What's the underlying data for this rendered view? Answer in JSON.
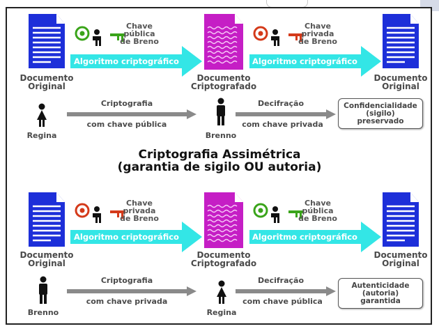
{
  "title_line1": "Criptografia Assimétrica",
  "title_line2": "(garantia de sigilo OU autoria)",
  "colors": {
    "doc_blue": "#1d2fd9",
    "cipher_magenta": "#c51ec5",
    "cyan_arrow": "#33e6e6",
    "algo_text": "#ffffff",
    "public_key_green": "#3aa41a",
    "private_key_red": "#d43a1a",
    "gray_arrow": "#8a8a8a"
  },
  "top": {
    "algo_label": "Algoritmo criptográfico",
    "key1": {
      "type": "public",
      "icon": "public-key-icon",
      "line1": "Chave",
      "line2": "pública",
      "line3": "de Breno"
    },
    "key2": {
      "type": "private",
      "icon": "private-key-icon",
      "line1": "Chave",
      "line2": "privada",
      "line3": "de Breno"
    },
    "doc_original_l1": "Documento",
    "doc_original_l2": "Original",
    "doc_cipher_l1": "Documento",
    "doc_cipher_l2": "Criptografado",
    "doc_final_l1": "Documento",
    "doc_final_l2": "Original",
    "person1": {
      "name": "Regina",
      "icon": "female-person-icon"
    },
    "person2": {
      "name": "Brenno",
      "icon": "male-person-icon"
    },
    "arrow1_top": "Criptografia",
    "arrow1_bottom": "com chave pública",
    "arrow2_top": "Decifração",
    "arrow2_bottom": "com chave privada",
    "result": "Confidencialidade\n(sigilo)\npreservado"
  },
  "bottom": {
    "algo_label": "Algoritmo criptográfico",
    "key1": {
      "type": "private",
      "icon": "private-key-icon",
      "line1": "Chave",
      "line2": "privada",
      "line3": "de Breno"
    },
    "key2": {
      "type": "public",
      "icon": "public-key-icon",
      "line1": "Chave",
      "line2": "pública",
      "line3": "de Breno"
    },
    "doc_original_l1": "Documento",
    "doc_original_l2": "Original",
    "doc_cipher_l1": "Documento",
    "doc_cipher_l2": "Criptografado",
    "doc_final_l1": "Documento",
    "doc_final_l2": "Original",
    "person1": {
      "name": "Brenno",
      "icon": "male-person-icon"
    },
    "person2": {
      "name": "Regina",
      "icon": "female-person-icon"
    },
    "arrow1_top": "Criptografia",
    "arrow1_bottom": "com chave privada",
    "arrow2_top": "Decifração",
    "arrow2_bottom": "com chave pública",
    "result": "Autenticidade\n(autoria)\ngarantida"
  }
}
